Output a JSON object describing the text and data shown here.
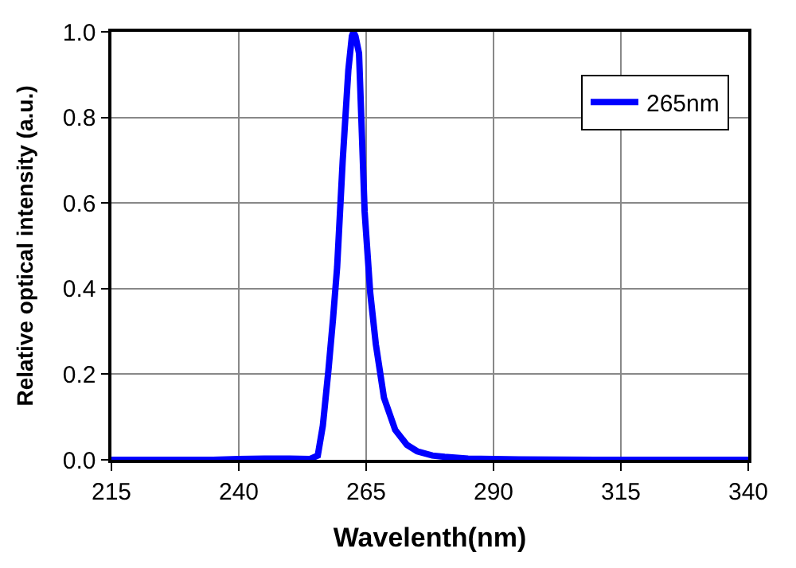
{
  "chart_data": {
    "type": "line",
    "xlabel": "Wavelenth(nm)",
    "ylabel": "Relative optical intensity (a.u.)",
    "series": [
      {
        "name": "265nm",
        "color": "#0000ff",
        "x": [
          215,
          225,
          235,
          240,
          245,
          250,
          254,
          255.5,
          256.5,
          257.6,
          258.5,
          259.3,
          260.4,
          261.5,
          262.2,
          262.5,
          262.9,
          263.6,
          264.7,
          265.8,
          266.9,
          268.5,
          270.7,
          273,
          275,
          278,
          280.4,
          285,
          295,
          310,
          325,
          340
        ],
        "values": [
          0,
          0,
          0,
          0.002,
          0.003,
          0.003,
          0.002,
          0.01,
          0.08,
          0.21,
          0.33,
          0.45,
          0.7,
          0.91,
          0.99,
          1.0,
          0.99,
          0.95,
          0.58,
          0.39,
          0.27,
          0.145,
          0.07,
          0.035,
          0.02,
          0.01,
          0.007,
          0.003,
          0.001,
          0,
          0,
          0
        ]
      }
    ],
    "xlim": [
      215,
      340
    ],
    "xticks": [
      215,
      240,
      265,
      290,
      315,
      340
    ],
    "ylim": [
      0,
      1
    ],
    "yticks": [
      {
        "value": 0,
        "label": "0.0"
      },
      {
        "value": 0.2,
        "label": "0.2"
      },
      {
        "value": 0.4,
        "label": "0.4"
      },
      {
        "value": 0.6,
        "label": "0.6"
      },
      {
        "value": 0.8,
        "label": "0.8"
      },
      {
        "value": 1,
        "label": "1.0"
      }
    ],
    "grid": true,
    "legend": "top right",
    "line_style": "solid",
    "marker": "none"
  }
}
